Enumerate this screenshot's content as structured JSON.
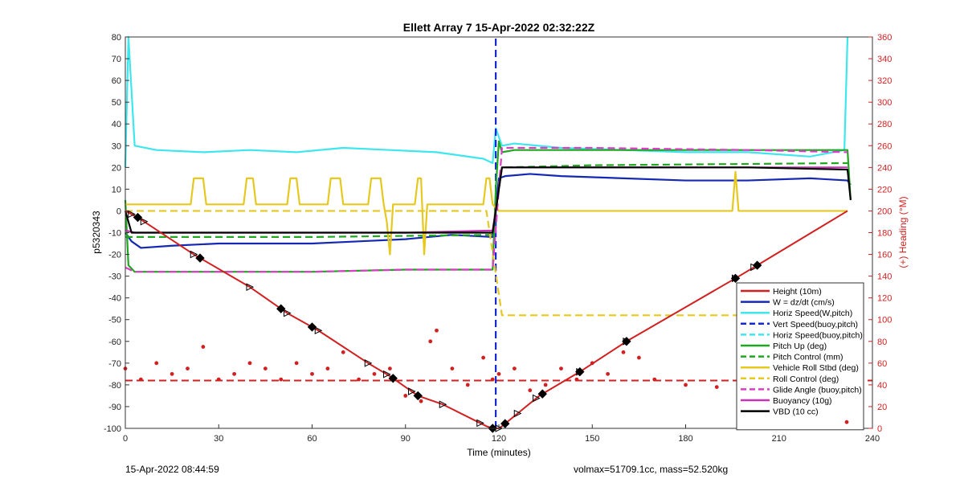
{
  "chart_data": {
    "type": "line",
    "title": "Ellett Array 7 15-Apr-2022 02:32:22Z",
    "xlabel": "Time (minutes)",
    "ylabel": "p5320343",
    "y2label": "(+) Heading (°M)",
    "xlim": [
      0,
      240
    ],
    "ylim": [
      -100,
      80
    ],
    "y2lim": [
      0,
      360
    ],
    "xticks": [
      "0",
      "30",
      "60",
      "90",
      "120",
      "150",
      "180",
      "210",
      "240"
    ],
    "yticks": [
      "80",
      "70",
      "60",
      "50",
      "40",
      "30",
      "20",
      "10",
      "0",
      "-10",
      "-20",
      "-30",
      "-40",
      "-50",
      "-60",
      "-70",
      "-80",
      "-90",
      "-100"
    ],
    "y2ticks": [
      "360",
      "340",
      "320",
      "300",
      "280",
      "260",
      "240",
      "220",
      "200",
      "180",
      "160",
      "140",
      "120",
      "100",
      "80",
      "60",
      "40",
      "20",
      "0"
    ],
    "grid": false,
    "legend_position": "bottom-right",
    "footer_left": "15-Apr-2022 08:44:59",
    "footer_right": "volmax=51709.1cc, mass=52.520kg",
    "legend": [
      {
        "label": "Height (10m)",
        "color": "#d21f1f",
        "style": "solid"
      },
      {
        "label": "W = dz/dt (cm/s)",
        "color": "#1428b4",
        "style": "solid"
      },
      {
        "label": "Horiz Speed(W,pitch)",
        "color": "#3ee6ee",
        "style": "solid"
      },
      {
        "label": "Vert Speed(buoy,pitch)",
        "color": "#1428d2",
        "style": "dash"
      },
      {
        "label": "Horiz Speed(buoy,pitch)",
        "color": "#3ee6ee",
        "style": "dash"
      },
      {
        "label": "Pitch Up (deg)",
        "color": "#1fa81f",
        "style": "solid"
      },
      {
        "label": "Pitch Control (mm)",
        "color": "#1fa81f",
        "style": "dash"
      },
      {
        "label": "Vehicle Roll Stbd (deg)",
        "color": "#e6c81e",
        "style": "solid"
      },
      {
        "label": "Roll Control (deg)",
        "color": "#e6c81e",
        "style": "dash"
      },
      {
        "label": "Glide Angle (buoy,pitch)",
        "color": "#dc3cc8",
        "style": "dash"
      },
      {
        "label": "Buoyancy (10g)",
        "color": "#c832b4",
        "style": "solid"
      },
      {
        "label": "VBD (10 cc)",
        "color": "#000000",
        "style": "solid"
      },
      {
        "label": "",
        "color": "#d21f1f",
        "style": "dots"
      }
    ],
    "series": [
      {
        "name": "Height (10m)",
        "axis": "left",
        "color": "#d21f1f",
        "x": [
          0,
          4,
          22,
          40,
          52,
          62,
          78,
          85,
          94,
          102,
          116,
          118,
          120,
          121,
          127,
          133,
          146,
          161,
          196,
          203,
          232
        ],
        "y": [
          0,
          -3,
          -20,
          -35,
          -47,
          -55,
          -70,
          -76,
          -85,
          -89,
          -99,
          -100,
          -100,
          -99,
          -92,
          -85,
          -74,
          -60,
          -31,
          -25,
          0
        ]
      },
      {
        "name": "W = dz/dt (cm/s)",
        "axis": "left",
        "color": "#1428b4",
        "x": [
          0,
          2,
          5,
          15,
          30,
          45,
          60,
          75,
          90,
          105,
          118,
          120,
          122,
          130,
          140,
          160,
          180,
          200,
          220,
          232,
          233
        ],
        "y": [
          -10,
          -14,
          -17,
          -16,
          -15,
          -15,
          -15,
          -14,
          -13,
          -11,
          -12,
          15,
          16,
          17,
          16,
          15,
          14,
          14,
          15,
          14,
          12
        ]
      },
      {
        "name": "Horiz Speed(W,pitch)",
        "axis": "left",
        "color": "#3ee6ee",
        "x": [
          0,
          1,
          3,
          10,
          25,
          40,
          55,
          70,
          85,
          100,
          115,
          118,
          119,
          121,
          125,
          140,
          160,
          180,
          200,
          220,
          231,
          232
        ],
        "y": [
          20,
          80,
          30,
          28,
          27,
          28,
          27,
          29,
          28,
          27,
          24,
          22,
          38,
          30,
          31,
          29,
          28,
          27,
          27,
          25,
          28,
          80
        ]
      },
      {
        "name": "Vert Speed(buoy,pitch)",
        "axis": "left",
        "color": "#1428d2",
        "style": "dash",
        "x": [
          119,
          119
        ],
        "y": [
          -100,
          80
        ]
      },
      {
        "name": "Pitch Up (deg)",
        "axis": "left",
        "color": "#1fa81f",
        "x": [
          0,
          1,
          3,
          10,
          30,
          60,
          90,
          118,
          119,
          120,
          121,
          125,
          150,
          200,
          232,
          233
        ],
        "y": [
          5,
          -25,
          -28,
          -28,
          -28,
          -28,
          -27,
          -27,
          10,
          32,
          27,
          28,
          28,
          28,
          28,
          5
        ]
      },
      {
        "name": "Pitch Control (mm)",
        "axis": "left",
        "color": "#1fa81f",
        "style": "dash",
        "x": [
          0,
          5,
          60,
          118,
          121,
          150,
          232
        ],
        "y": [
          -12,
          -12,
          -12,
          -11,
          20,
          21,
          22
        ]
      },
      {
        "name": "Vehicle Roll Stbd (deg)",
        "axis": "left",
        "color": "#e6c81e",
        "x": [
          0,
          5,
          21,
          22,
          25,
          26,
          38,
          39,
          41,
          42,
          52,
          53,
          55,
          56,
          65,
          66,
          69,
          70,
          78,
          79,
          82,
          83,
          84,
          85,
          86,
          93,
          94,
          95,
          96,
          97,
          115,
          116,
          117,
          118,
          120,
          121,
          140,
          195,
          196,
          197,
          232
        ],
        "y": [
          3,
          3,
          3,
          15,
          15,
          3,
          3,
          15,
          15,
          3,
          3,
          15,
          15,
          3,
          3,
          15,
          15,
          3,
          3,
          15,
          15,
          3,
          -5,
          -20,
          3,
          3,
          15,
          15,
          -20,
          3,
          3,
          15,
          15,
          3,
          0,
          0,
          0,
          0,
          18,
          0,
          0
        ]
      },
      {
        "name": "Roll Control (deg)",
        "axis": "left",
        "color": "#e6c81e",
        "style": "dash",
        "x": [
          0,
          5,
          40,
          80,
          116,
          121,
          200,
          232
        ],
        "y": [
          0,
          0,
          0,
          0,
          0,
          -48,
          -48,
          -80
        ]
      },
      {
        "name": "Glide Angle (buoy,pitch)",
        "axis": "left",
        "color": "#dc3cc8",
        "style": "dash",
        "x": [
          0,
          3,
          30,
          60,
          90,
          118,
          121,
          150,
          200,
          232
        ],
        "y": [
          -26,
          -28,
          -28,
          -28,
          -27,
          -27,
          29,
          29,
          28,
          27
        ]
      },
      {
        "name": "Buoyancy (10g)",
        "axis": "left",
        "color": "#c832b4",
        "x": [
          0,
          3,
          30,
          60,
          90,
          118,
          121,
          150,
          200,
          232
        ],
        "y": [
          -9,
          -10,
          -10,
          -10,
          -10,
          -9,
          20,
          20,
          20,
          20
        ]
      },
      {
        "name": "VBD (10 cc)",
        "axis": "left",
        "color": "#000000",
        "x": [
          0,
          2,
          30,
          60,
          90,
          118,
          121,
          150,
          200,
          232,
          233
        ],
        "y": [
          0,
          -10,
          -10,
          -10,
          -10,
          -10,
          20,
          20,
          20,
          19,
          5
        ]
      },
      {
        "name": "Heading",
        "axis": "right",
        "color": "#d21f1f",
        "style": "dots",
        "x": [
          0,
          5,
          10,
          15,
          20,
          25,
          30,
          35,
          40,
          45,
          50,
          55,
          60,
          65,
          70,
          75,
          80,
          85,
          90,
          95,
          98,
          100,
          105,
          110,
          115,
          118,
          120,
          125,
          130,
          135,
          140,
          145,
          150,
          155,
          160,
          165,
          170,
          180,
          190,
          200,
          210,
          220,
          230
        ],
        "y": [
          55,
          45,
          60,
          50,
          55,
          75,
          45,
          50,
          60,
          55,
          45,
          60,
          50,
          55,
          70,
          45,
          50,
          55,
          30,
          25,
          80,
          90,
          55,
          40,
          65,
          45,
          50,
          55,
          35,
          40,
          55,
          45,
          60,
          50,
          70,
          65,
          45,
          40,
          38,
          35,
          45,
          40,
          35
        ]
      }
    ],
    "horizontal_refs": [
      {
        "axis": "left",
        "y": -78,
        "color": "#d21f1f",
        "style": "dash"
      }
    ],
    "markers": {
      "triangles_on_height_at_x": [
        2,
        6,
        22,
        40,
        52,
        62,
        78,
        84,
        92,
        102,
        114,
        120,
        126,
        132,
        146,
        161,
        196,
        202
      ],
      "diamonds_on_height_at_x": [
        4,
        24,
        50,
        60,
        86,
        94,
        118,
        122,
        134,
        146,
        161,
        196,
        203
      ]
    }
  }
}
